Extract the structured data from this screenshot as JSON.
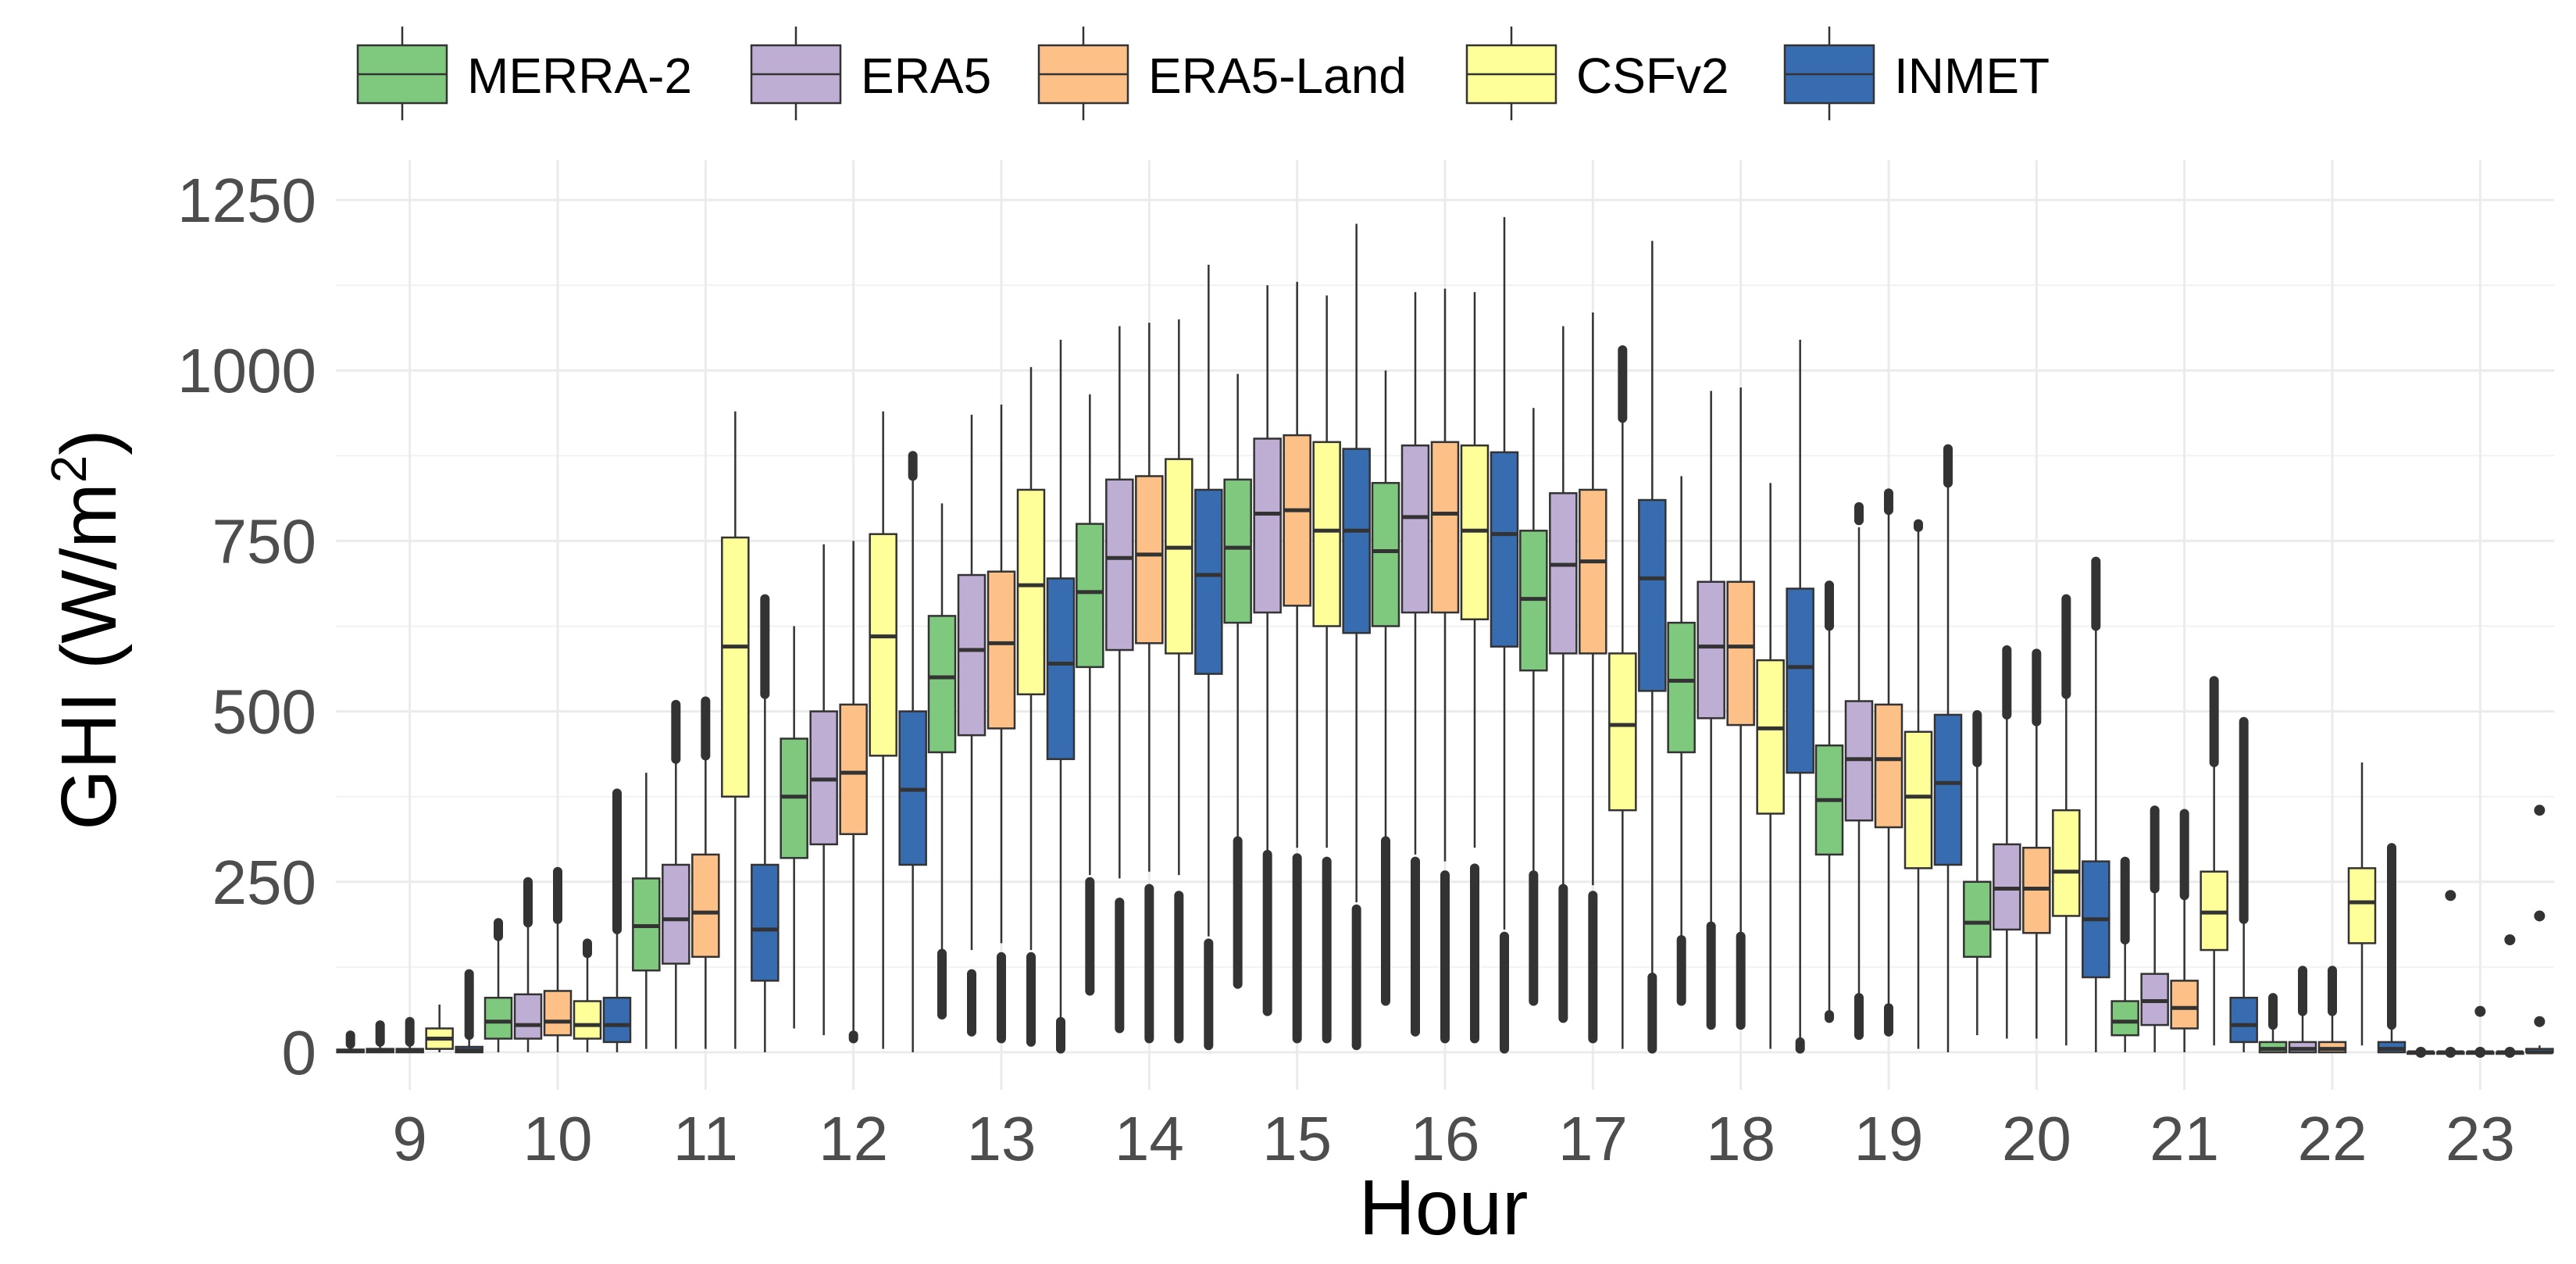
{
  "chart_data": {
    "type": "boxplot",
    "xlabel": "Hour",
    "ylabel": "GHI (W/m",
    "ylabel_sup": "2",
    "ylabel_end": ")",
    "ylim": [
      -50,
      1300
    ],
    "yticks": [
      0,
      250,
      500,
      750,
      1000,
      1250
    ],
    "ytick_labels": [
      "0",
      "250",
      "500",
      "750",
      "1000",
      "1250"
    ],
    "categories": [
      "9",
      "10",
      "11",
      "12",
      "13",
      "14",
      "15",
      "16",
      "17",
      "18",
      "19",
      "20",
      "21",
      "22",
      "23"
    ],
    "legend_position": "top",
    "series": [
      {
        "name": "MERRA-2",
        "color": "#7fc97f",
        "boxes": [
          {
            "q1": 0,
            "med": 2,
            "q3": 4,
            "wlo": 0,
            "whi": 10,
            "olo": null,
            "ohi": [
              12,
              25
            ]
          },
          {
            "q1": 20,
            "med": 45,
            "q3": 80,
            "wlo": 0,
            "whi": 165,
            "olo": null,
            "ohi": [
              170,
              190
            ]
          },
          {
            "q1": 120,
            "med": 185,
            "q3": 255,
            "wlo": 5,
            "whi": 410,
            "olo": null,
            "ohi": null
          },
          {
            "q1": 285,
            "med": 375,
            "q3": 460,
            "wlo": 35,
            "whi": 625,
            "olo": null,
            "ohi": null
          },
          {
            "q1": 440,
            "med": 550,
            "q3": 640,
            "wlo": 150,
            "whi": 805,
            "olo": [
              55,
              145
            ],
            "ohi": null
          },
          {
            "q1": 565,
            "med": 675,
            "q3": 775,
            "wlo": 260,
            "whi": 965,
            "olo": [
              90,
              250
            ],
            "ohi": null
          },
          {
            "q1": 630,
            "med": 740,
            "q3": 840,
            "wlo": 315,
            "whi": 995,
            "olo": [
              100,
              310
            ],
            "ohi": null
          },
          {
            "q1": 625,
            "med": 735,
            "q3": 835,
            "wlo": 315,
            "whi": 1000,
            "olo": [
              75,
              310
            ],
            "ohi": null
          },
          {
            "q1": 560,
            "med": 665,
            "q3": 765,
            "wlo": 265,
            "whi": 945,
            "olo": [
              75,
              260
            ],
            "ohi": null
          },
          {
            "q1": 440,
            "med": 545,
            "q3": 630,
            "wlo": 170,
            "whi": 845,
            "olo": [
              75,
              165
            ],
            "ohi": null
          },
          {
            "q1": 290,
            "med": 370,
            "q3": 450,
            "wlo": 60,
            "whi": 620,
            "olo": [
              50,
              55
            ],
            "ohi": [
              625,
              685
            ]
          },
          {
            "q1": 140,
            "med": 190,
            "q3": 250,
            "wlo": 25,
            "whi": 420,
            "olo": null,
            "ohi": [
              425,
              495
            ]
          },
          {
            "q1": 25,
            "med": 45,
            "q3": 75,
            "wlo": 0,
            "whi": 160,
            "olo": null,
            "ohi": [
              165,
              280
            ]
          },
          {
            "q1": 0,
            "med": 5,
            "q3": 15,
            "wlo": 0,
            "whi": 35,
            "olo": null,
            "ohi": [
              40,
              80
            ]
          },
          {
            "q1": 0,
            "med": 0,
            "q3": 0,
            "wlo": 0,
            "whi": 0,
            "olo": null,
            "ohi": null
          }
        ]
      },
      {
        "name": "ERA5",
        "color": "#beaed4",
        "boxes": [
          {
            "q1": 0,
            "med": 2,
            "q3": 5,
            "wlo": 0,
            "whi": 12,
            "olo": null,
            "ohi": [
              15,
              40
            ]
          },
          {
            "q1": 20,
            "med": 40,
            "q3": 85,
            "wlo": 0,
            "whi": 185,
            "olo": null,
            "ohi": [
              190,
              250
            ]
          },
          {
            "q1": 130,
            "med": 195,
            "q3": 275,
            "wlo": 5,
            "whi": 425,
            "olo": null,
            "ohi": [
              430,
              510
            ]
          },
          {
            "q1": 305,
            "med": 400,
            "q3": 500,
            "wlo": 25,
            "whi": 745,
            "olo": null,
            "ohi": null
          },
          {
            "q1": 465,
            "med": 590,
            "q3": 700,
            "wlo": 150,
            "whi": 935,
            "olo": [
              30,
              115
            ],
            "ohi": null
          },
          {
            "q1": 590,
            "med": 725,
            "q3": 840,
            "wlo": 255,
            "whi": 1065,
            "olo": [
              35,
              220
            ],
            "ohi": null
          },
          {
            "q1": 645,
            "med": 790,
            "q3": 900,
            "wlo": 295,
            "whi": 1125,
            "olo": [
              60,
              290
            ],
            "ohi": null
          },
          {
            "q1": 645,
            "med": 785,
            "q3": 890,
            "wlo": 290,
            "whi": 1115,
            "olo": [
              30,
              280
            ],
            "ohi": null
          },
          {
            "q1": 585,
            "med": 715,
            "q3": 820,
            "wlo": 245,
            "whi": 1065,
            "olo": [
              50,
              240
            ],
            "ohi": null
          },
          {
            "q1": 490,
            "med": 595,
            "q3": 690,
            "wlo": 190,
            "whi": 970,
            "olo": [
              40,
              185
            ],
            "ohi": null
          },
          {
            "q1": 340,
            "med": 430,
            "q3": 515,
            "wlo": 85,
            "whi": 770,
            "olo": [
              25,
              80
            ],
            "ohi": [
              780,
              800
            ]
          },
          {
            "q1": 180,
            "med": 240,
            "q3": 305,
            "wlo": 20,
            "whi": 490,
            "olo": null,
            "ohi": [
              495,
              590
            ]
          },
          {
            "q1": 40,
            "med": 75,
            "q3": 115,
            "wlo": 0,
            "whi": 235,
            "olo": null,
            "ohi": [
              240,
              355
            ]
          },
          {
            "q1": 0,
            "med": 5,
            "q3": 15,
            "wlo": 0,
            "whi": 55,
            "olo": null,
            "ohi": [
              60,
              120
            ]
          },
          {
            "q1": 0,
            "med": 0,
            "q3": 0,
            "wlo": 0,
            "whi": 0,
            "olo": null,
            "ohi": null
          }
        ]
      },
      {
        "name": "ERA5-Land",
        "color": "#fdc086",
        "boxes": [
          {
            "q1": 0,
            "med": 2,
            "q3": 5,
            "wlo": 0,
            "whi": 12,
            "olo": null,
            "ohi": [
              15,
              45
            ]
          },
          {
            "q1": 25,
            "med": 45,
            "q3": 90,
            "wlo": 0,
            "whi": 190,
            "olo": null,
            "ohi": [
              195,
              265
            ]
          },
          {
            "q1": 140,
            "med": 205,
            "q3": 290,
            "wlo": 5,
            "whi": 430,
            "olo": null,
            "ohi": [
              435,
              515
            ]
          },
          {
            "q1": 320,
            "med": 410,
            "q3": 510,
            "wlo": 30,
            "whi": 750,
            "olo": [
              20,
              25
            ],
            "ohi": null
          },
          {
            "q1": 475,
            "med": 600,
            "q3": 705,
            "wlo": 160,
            "whi": 950,
            "olo": [
              20,
              140
            ],
            "ohi": null
          },
          {
            "q1": 600,
            "med": 730,
            "q3": 845,
            "wlo": 265,
            "whi": 1070,
            "olo": [
              20,
              240
            ],
            "ohi": null
          },
          {
            "q1": 655,
            "med": 795,
            "q3": 905,
            "wlo": 300,
            "whi": 1130,
            "olo": [
              20,
              285
            ],
            "ohi": null
          },
          {
            "q1": 645,
            "med": 790,
            "q3": 895,
            "wlo": 280,
            "whi": 1120,
            "olo": [
              20,
              260
            ],
            "ohi": null
          },
          {
            "q1": 585,
            "med": 720,
            "q3": 825,
            "wlo": 245,
            "whi": 1085,
            "olo": [
              20,
              230
            ],
            "ohi": null
          },
          {
            "q1": 480,
            "med": 595,
            "q3": 690,
            "wlo": 175,
            "whi": 975,
            "olo": [
              40,
              170
            ],
            "ohi": null
          },
          {
            "q1": 330,
            "med": 430,
            "q3": 510,
            "wlo": 70,
            "whi": 790,
            "olo": [
              30,
              65
            ],
            "ohi": [
              795,
              820
            ]
          },
          {
            "q1": 175,
            "med": 240,
            "q3": 300,
            "wlo": 20,
            "whi": 480,
            "olo": null,
            "ohi": [
              485,
              585
            ]
          },
          {
            "q1": 35,
            "med": 65,
            "q3": 105,
            "wlo": 0,
            "whi": 225,
            "olo": null,
            "ohi": [
              230,
              350
            ]
          },
          {
            "q1": 0,
            "med": 5,
            "q3": 15,
            "wlo": 0,
            "whi": 55,
            "olo": null,
            "ohi": [
              60,
              120
            ]
          },
          {
            "q1": 0,
            "med": 0,
            "q3": 0,
            "wlo": 0,
            "whi": 0,
            "olo": null,
            "ohi": null
          }
        ]
      },
      {
        "name": "CSFv2",
        "color": "#ffff99",
        "boxes": [
          {
            "q1": 5,
            "med": 20,
            "q3": 35,
            "wlo": 0,
            "whi": 70,
            "olo": null,
            "ohi": null
          },
          {
            "q1": 20,
            "med": 40,
            "q3": 75,
            "wlo": 0,
            "whi": 140,
            "olo": null,
            "ohi": [
              145,
              160
            ]
          },
          {
            "q1": 375,
            "med": 595,
            "q3": 755,
            "wlo": 5,
            "whi": 940,
            "olo": null,
            "ohi": null
          },
          {
            "q1": 435,
            "med": 610,
            "q3": 760,
            "wlo": 5,
            "whi": 940,
            "olo": null,
            "ohi": null
          },
          {
            "q1": 525,
            "med": 685,
            "q3": 825,
            "wlo": 150,
            "whi": 1005,
            "olo": [
              15,
              140
            ],
            "ohi": null
          },
          {
            "q1": 585,
            "med": 740,
            "q3": 870,
            "wlo": 260,
            "whi": 1075,
            "olo": [
              20,
              230
            ],
            "ohi": null
          },
          {
            "q1": 625,
            "med": 765,
            "q3": 895,
            "wlo": 300,
            "whi": 1110,
            "olo": [
              20,
              280
            ],
            "ohi": null
          },
          {
            "q1": 635,
            "med": 765,
            "q3": 890,
            "wlo": 300,
            "whi": 1115,
            "olo": [
              20,
              270
            ],
            "ohi": null
          },
          {
            "q1": 355,
            "med": 480,
            "q3": 585,
            "wlo": 5,
            "whi": 925,
            "olo": null,
            "ohi": [
              930,
              1030
            ]
          },
          {
            "q1": 350,
            "med": 475,
            "q3": 575,
            "wlo": 5,
            "whi": 835,
            "olo": null,
            "ohi": null
          },
          {
            "q1": 270,
            "med": 375,
            "q3": 470,
            "wlo": 5,
            "whi": 765,
            "olo": null,
            "ohi": [
              770,
              775
            ]
          },
          {
            "q1": 200,
            "med": 265,
            "q3": 355,
            "wlo": 10,
            "whi": 520,
            "olo": null,
            "ohi": [
              525,
              665
            ]
          },
          {
            "q1": 150,
            "med": 205,
            "q3": 265,
            "wlo": 10,
            "whi": 420,
            "olo": null,
            "ohi": [
              425,
              545
            ]
          },
          {
            "q1": 160,
            "med": 220,
            "q3": 270,
            "wlo": 10,
            "whi": 425,
            "olo": null,
            "ohi": null
          },
          {
            "q1": 0,
            "med": 0,
            "q3": 0,
            "wlo": 0,
            "whi": 0,
            "olo": null,
            "ohi": null
          }
        ]
      },
      {
        "name": "INMET",
        "color": "#386cb0",
        "boxes": [
          {
            "q1": 0,
            "med": 3,
            "q3": 8,
            "wlo": 0,
            "whi": 20,
            "olo": null,
            "ohi": [
              25,
              115
            ]
          },
          {
            "q1": 15,
            "med": 40,
            "q3": 80,
            "wlo": 0,
            "whi": 175,
            "olo": null,
            "ohi": [
              180,
              380
            ]
          },
          {
            "q1": 105,
            "med": 180,
            "q3": 275,
            "wlo": 0,
            "whi": 520,
            "olo": null,
            "ohi": [
              525,
              665
            ]
          },
          {
            "q1": 275,
            "med": 385,
            "q3": 500,
            "wlo": 0,
            "whi": 840,
            "olo": null,
            "ohi": [
              845,
              875
            ]
          },
          {
            "q1": 430,
            "med": 570,
            "q3": 695,
            "wlo": 50,
            "whi": 1045,
            "olo": [
              5,
              45
            ],
            "ohi": null
          },
          {
            "q1": 555,
            "med": 700,
            "q3": 825,
            "wlo": 170,
            "whi": 1155,
            "olo": [
              10,
              160
            ],
            "ohi": null
          },
          {
            "q1": 615,
            "med": 765,
            "q3": 885,
            "wlo": 220,
            "whi": 1215,
            "olo": [
              10,
              210
            ],
            "ohi": null
          },
          {
            "q1": 595,
            "med": 760,
            "q3": 880,
            "wlo": 180,
            "whi": 1225,
            "olo": [
              5,
              170
            ],
            "ohi": null
          },
          {
            "q1": 530,
            "med": 695,
            "q3": 810,
            "wlo": 115,
            "whi": 1190,
            "olo": [
              5,
              110
            ],
            "ohi": null
          },
          {
            "q1": 410,
            "med": 565,
            "q3": 680,
            "wlo": 20,
            "whi": 1045,
            "olo": [
              5,
              15
            ],
            "ohi": null
          },
          {
            "q1": 275,
            "med": 395,
            "q3": 495,
            "wlo": 0,
            "whi": 830,
            "olo": null,
            "ohi": [
              835,
              885
            ]
          },
          {
            "q1": 110,
            "med": 195,
            "q3": 280,
            "wlo": 0,
            "whi": 620,
            "olo": null,
            "ohi": [
              625,
              720
            ]
          },
          {
            "q1": 15,
            "med": 40,
            "q3": 80,
            "wlo": 0,
            "whi": 190,
            "olo": null,
            "ohi": [
              195,
              485
            ]
          },
          {
            "q1": 0,
            "med": 5,
            "q3": 15,
            "wlo": 0,
            "whi": 35,
            "olo": null,
            "ohi": [
              40,
              300
            ]
          },
          {
            "q1": 0,
            "med": 0,
            "q3": 5,
            "wlo": 0,
            "whi": 10,
            "olo": null,
            "ohi": [
              45,
              200,
              355
            ]
          }
        ]
      }
    ],
    "extra_points": [
      {
        "series": "MERRA-2",
        "hour": "23",
        "values": [
          0
        ]
      },
      {
        "series": "ERA5",
        "hour": "23",
        "values": [
          0,
          230
        ]
      },
      {
        "series": "ERA5-Land",
        "hour": "23",
        "values": [
          0,
          60
        ]
      },
      {
        "series": "CSFv2",
        "hour": "23",
        "values": [
          0,
          165
        ]
      }
    ]
  }
}
